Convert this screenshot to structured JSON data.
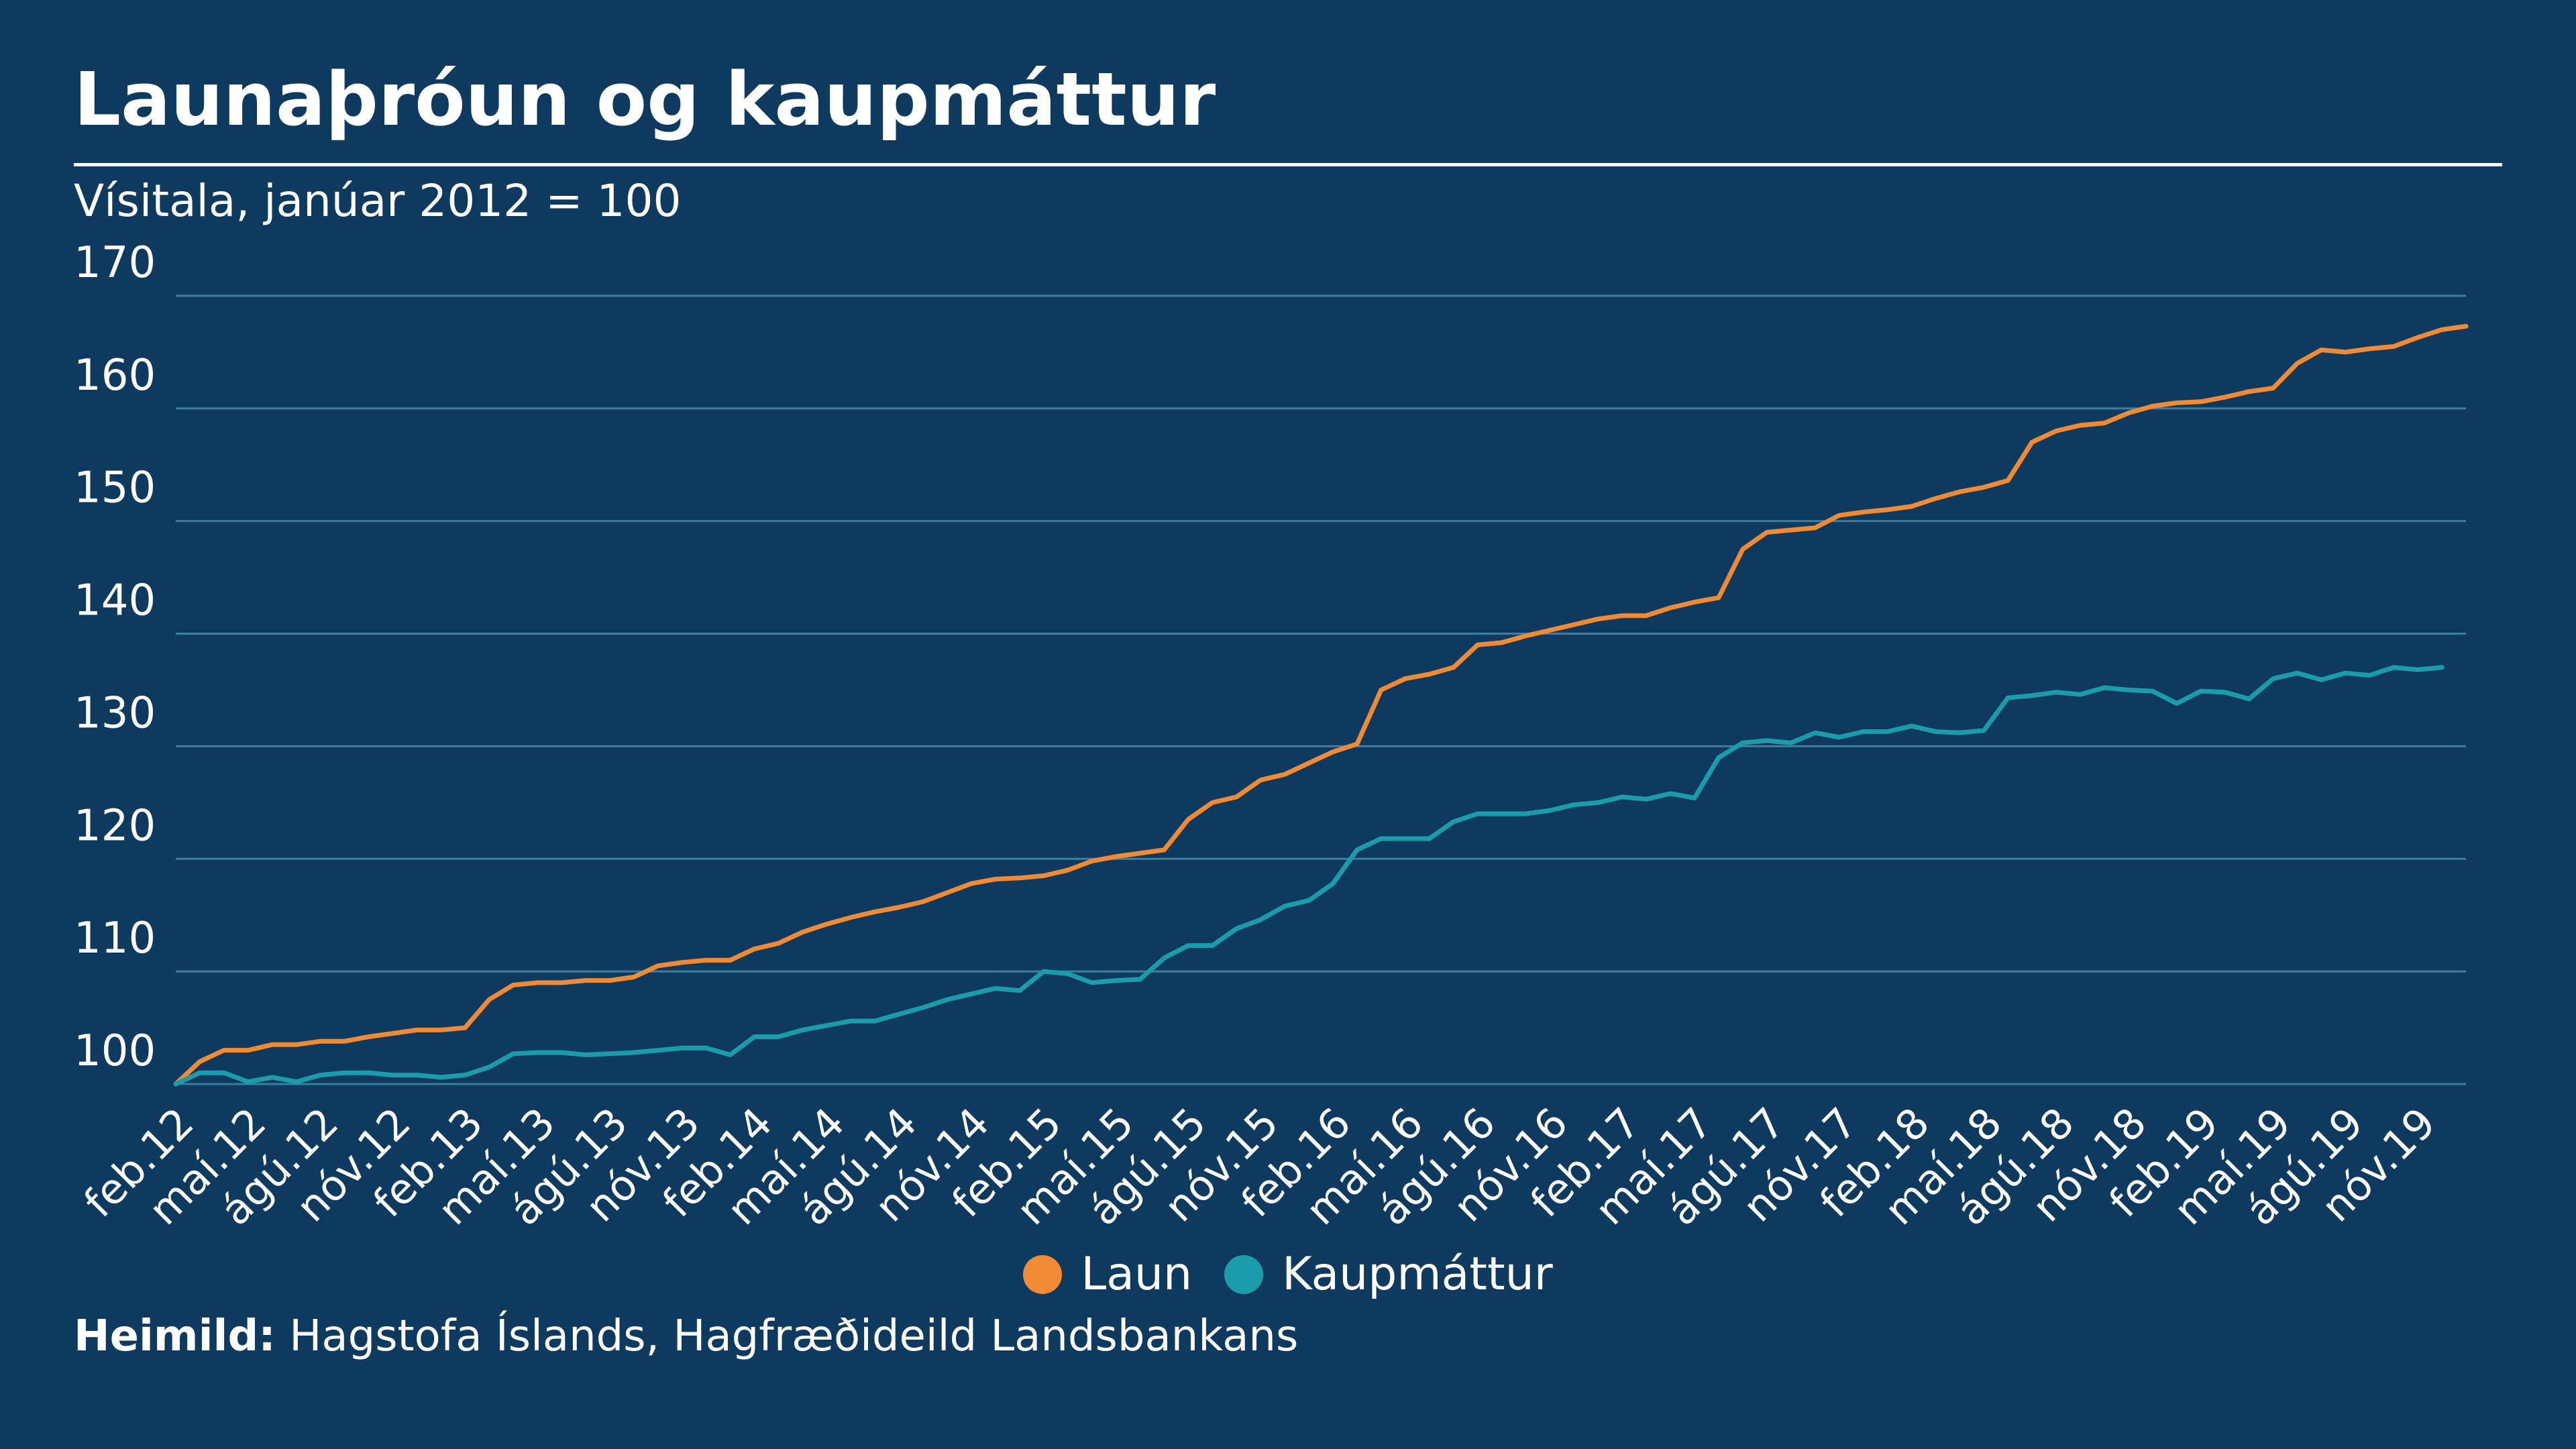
{
  "header": {
    "title": "Launaþróun og kaupmáttur",
    "subtitle": "Vísitala, janúar 2012 = 100"
  },
  "source": {
    "label": "Heimild:",
    "text": " Hagstofa Íslands, Hagfræðideild Landsbankans"
  },
  "colors": {
    "background": "#0e3a5f",
    "laun": "#f08a34",
    "kaupmattur": "#1a9cab",
    "grid": "#3d7fa0"
  },
  "chart_data": {
    "type": "line",
    "title": "Launaþróun og kaupmáttur",
    "subtitle": "Vísitala, janúar 2012 = 100",
    "ylim": [
      100,
      170
    ],
    "yticks": [
      100,
      110,
      120,
      130,
      140,
      150,
      160,
      170
    ],
    "grid": true,
    "legend": "bottom-center",
    "x_tick_labels": [
      "feb.12",
      "maí.12",
      "ágú.12",
      "nóv.12",
      "feb.13",
      "maí.13",
      "ágú.13",
      "nóv.13",
      "feb.14",
      "maí.14",
      "ágú.14",
      "nóv.14",
      "feb.15",
      "maí.15",
      "ágú.15",
      "nóv.15",
      "feb.16",
      "maí.16",
      "ágú.16",
      "nóv.16",
      "feb.17",
      "maí.17",
      "ágú.17",
      "nóv.17",
      "feb.18",
      "maí.18",
      "ágú.18",
      "nóv.18",
      "feb.19",
      "maí.19",
      "ágú.19",
      "nóv.19"
    ],
    "series": [
      {
        "name": "Laun",
        "color": "#f08a34",
        "values": [
          100,
          102,
          103,
          103,
          103.5,
          103.5,
          103.8,
          103.8,
          104.2,
          104.5,
          104.8,
          104.8,
          105,
          107.5,
          108.8,
          109,
          109,
          109.2,
          109.2,
          109.5,
          110.5,
          110.8,
          111,
          111,
          112,
          112.5,
          113.5,
          114.2,
          114.8,
          115.3,
          115.7,
          116.2,
          117,
          117.8,
          118.2,
          118.3,
          118.5,
          119,
          119.8,
          120.2,
          120.5,
          120.8,
          123.5,
          125,
          125.5,
          127,
          127.5,
          128.5,
          129.5,
          130.2,
          135,
          136,
          136.4,
          137,
          139,
          139.2,
          139.8,
          140.3,
          140.8,
          141.3,
          141.6,
          141.6,
          142.3,
          142.8,
          143.2,
          147.5,
          149,
          149.2,
          149.4,
          150.5,
          150.8,
          151,
          151.3,
          152,
          152.6,
          153,
          153.6,
          157,
          158,
          158.5,
          158.7,
          159.6,
          160.2,
          160.5,
          160.6,
          161,
          161.5,
          161.8,
          164,
          165.2,
          165,
          165.3,
          165.5,
          166.3,
          167,
          167.3
        ]
      },
      {
        "name": "Kaupmáttur",
        "color": "#1a9cab",
        "values": [
          100,
          101,
          101,
          100.2,
          100.6,
          100.2,
          100.8,
          101,
          101,
          100.8,
          100.8,
          100.6,
          100.8,
          101.5,
          102.7,
          102.8,
          102.8,
          102.6,
          102.7,
          102.8,
          103,
          103.2,
          103.2,
          102.6,
          104.2,
          104.2,
          104.8,
          105.2,
          105.6,
          105.6,
          106.2,
          106.8,
          107.5,
          108,
          108.5,
          108.3,
          110,
          109.8,
          109,
          109.2,
          109.3,
          111.2,
          112.3,
          112.3,
          113.8,
          114.6,
          115.8,
          116.3,
          117.8,
          120.8,
          121.8,
          121.8,
          121.8,
          123.3,
          124,
          124,
          124,
          124.3,
          124.8,
          125,
          125.5,
          125.3,
          125.8,
          125.4,
          129,
          130.3,
          130.5,
          130.3,
          131.2,
          130.8,
          131.3,
          131.3,
          131.8,
          131.3,
          131.2,
          131.4,
          134.3,
          134.5,
          134.8,
          134.6,
          135.2,
          135,
          134.9,
          133.8,
          134.9,
          134.8,
          134.2,
          136,
          136.5,
          135.9,
          136.5,
          136.3,
          137,
          136.8,
          137
        ]
      }
    ]
  }
}
